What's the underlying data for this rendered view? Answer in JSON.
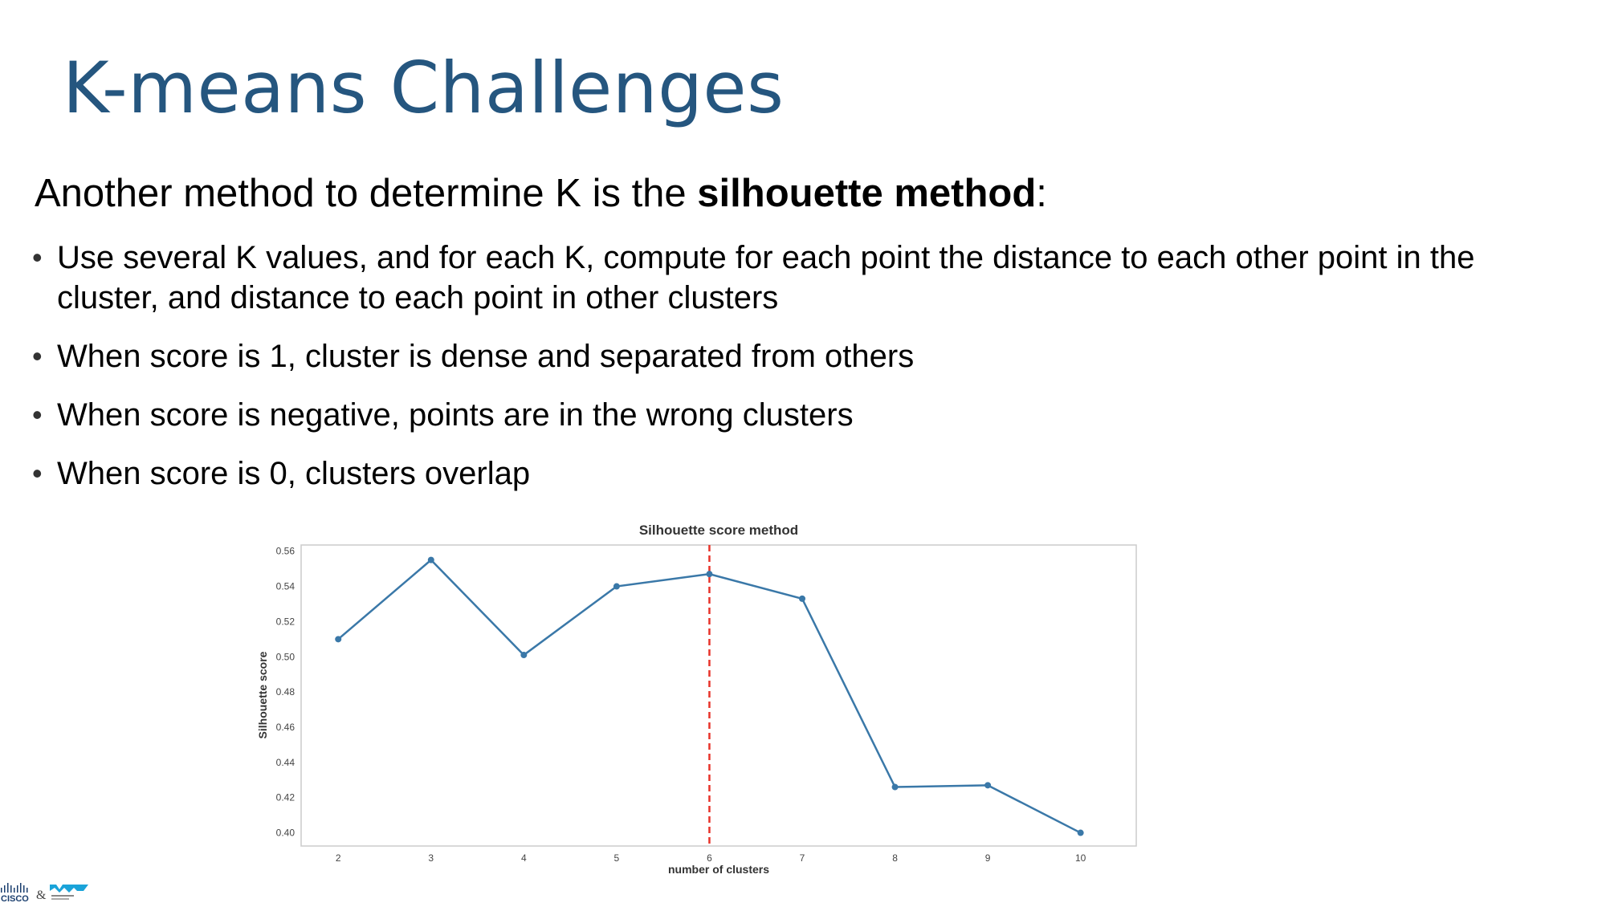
{
  "slide": {
    "title": "K-means Challenges",
    "intro_prefix": "Another method to determine K is the ",
    "intro_bold": "silhouette method",
    "intro_suffix": ":",
    "bullets": [
      "Use several K values, and for each K, compute for each point the distance to each other point in the cluster, and distance to each point in other clusters",
      "When score is 1, cluster is dense and separated from others",
      "When score is negative, points are in the wrong clusters",
      "When score is 0, clusters overlap"
    ],
    "bullet_glyph": "•"
  },
  "logos": {
    "brand_left": "CISCO",
    "separator": "&"
  },
  "chart_data": {
    "type": "line",
    "title": "Silhouette score method",
    "xlabel": "number of clusters",
    "ylabel": "Silhouette score",
    "x": [
      2,
      3,
      4,
      5,
      6,
      7,
      8,
      9,
      10
    ],
    "y": [
      0.51,
      0.555,
      0.501,
      0.54,
      0.547,
      0.533,
      0.426,
      0.427,
      0.4
    ],
    "yticks": [
      "0.56",
      "0.54",
      "0.52",
      "0.50",
      "0.48",
      "0.46",
      "0.44",
      "0.42",
      "0.40"
    ],
    "xticks": [
      "2",
      "3",
      "4",
      "5",
      "6",
      "7",
      "8",
      "9",
      "10"
    ],
    "ylim": [
      0.3925,
      0.5635
    ],
    "xlim": [
      1.6,
      10.6
    ],
    "vline_x": 6,
    "grid": false,
    "line_color": "#3a78a8",
    "vline_color": "#e8332a"
  }
}
